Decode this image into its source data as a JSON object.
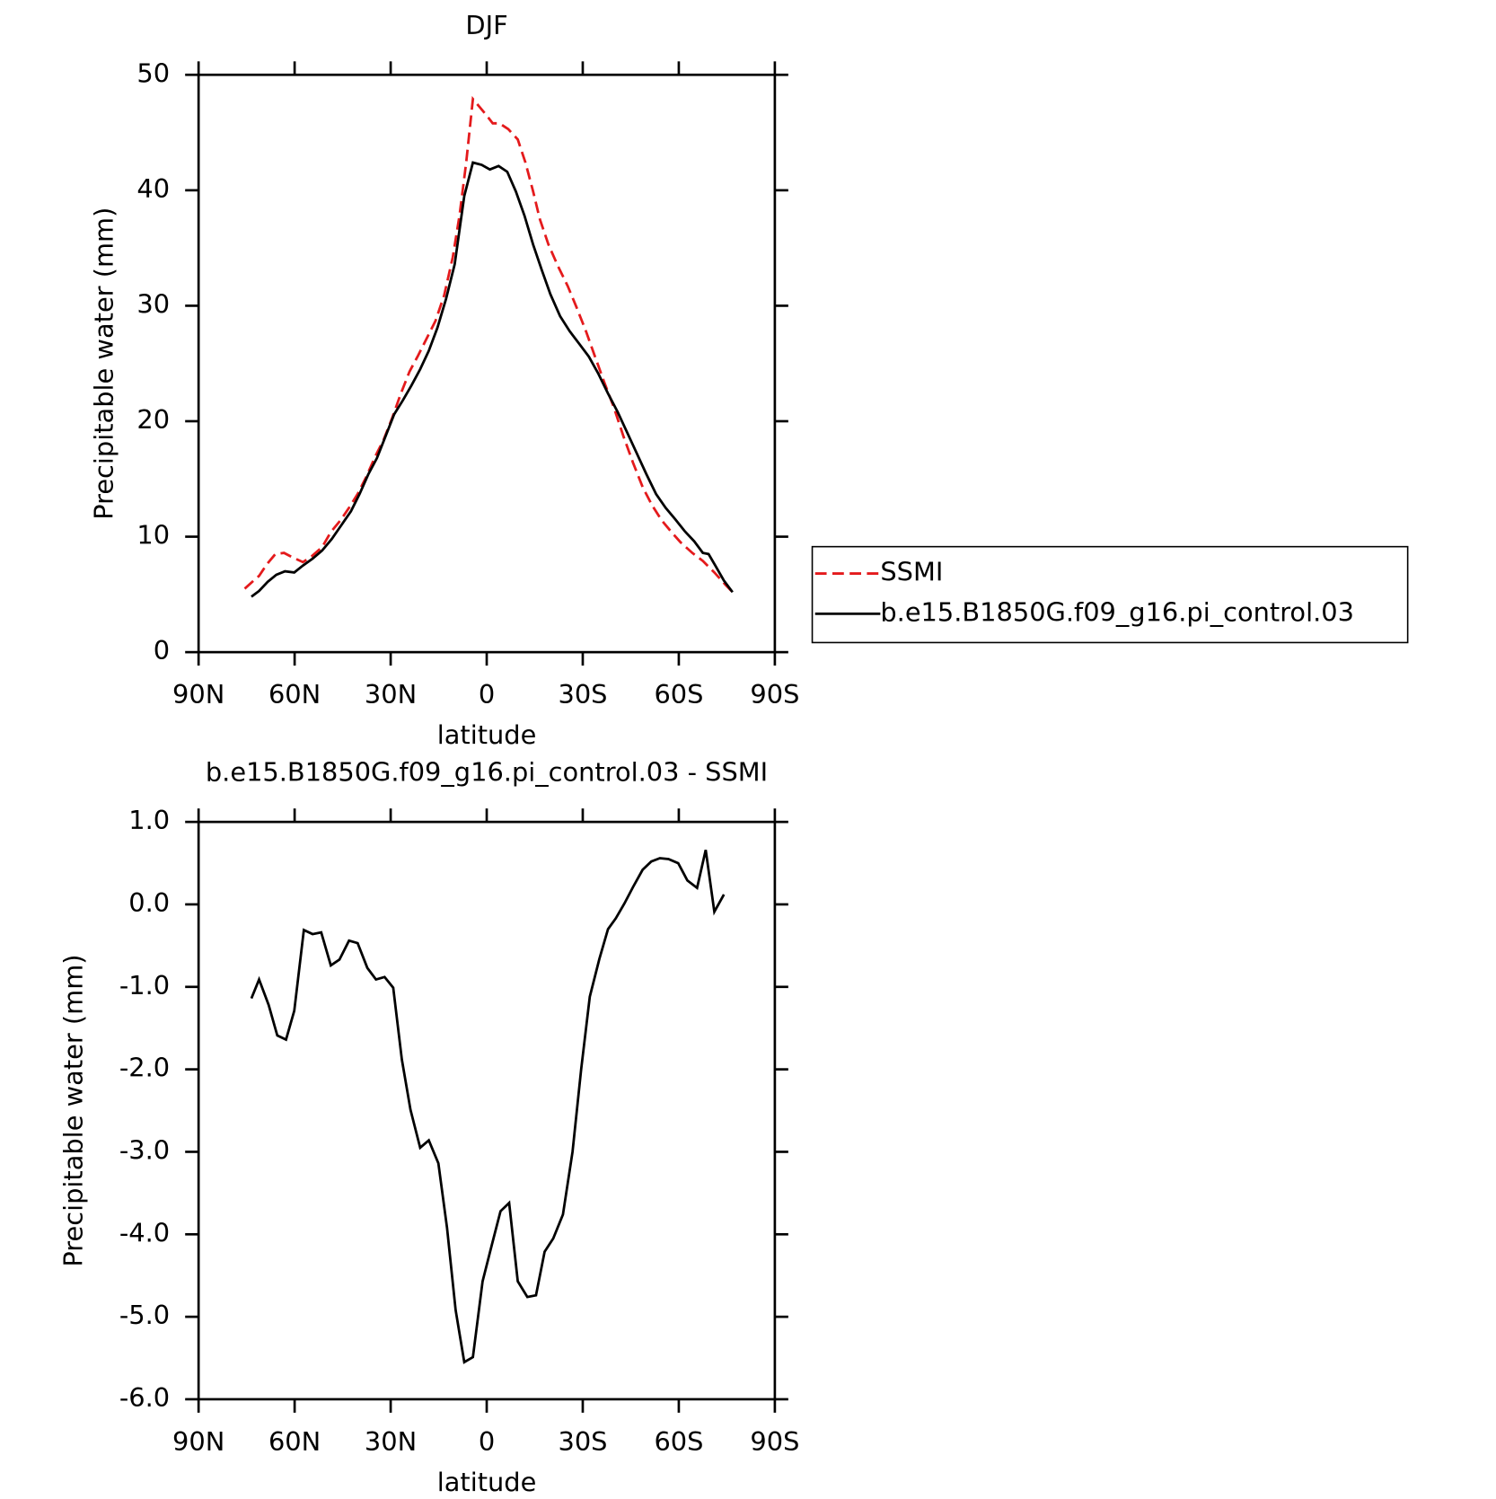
{
  "chart_data": [
    {
      "type": "line",
      "title": "DJF",
      "xlabel": "latitude",
      "ylabel": "Precipitable water (mm)",
      "xlim": [
        90,
        -90
      ],
      "ylim": [
        0,
        50
      ],
      "xticks": [
        {
          "value": 90,
          "label": "90N"
        },
        {
          "value": 60,
          "label": "60N"
        },
        {
          "value": 30,
          "label": "30N"
        },
        0,
        {
          "value": -30,
          "label": "30S"
        },
        {
          "value": -60,
          "label": "60S"
        },
        {
          "value": -90,
          "label": "90S"
        }
      ],
      "yticks": [
        0,
        10,
        20,
        30,
        40,
        50
      ],
      "legend": true,
      "series": [
        {
          "name": "SSMI",
          "color": "#e41a1c",
          "line_style": "dashed",
          "x": [
            75.6,
            73.2,
            71.1,
            68.7,
            66.0,
            63.3,
            60.6,
            57.4,
            54.7,
            51.4,
            48.7,
            45.7,
            43.0,
            40.3,
            37.6,
            34.9,
            32.2,
            29.5,
            26.8,
            24.1,
            21.4,
            18.7,
            16.0,
            13.3,
            10.6,
            8.5,
            6.4,
            4.3,
            2.2,
            0.1,
            -1.9,
            -4.0,
            -6.7,
            -9.7,
            -12.1,
            -14.5,
            -16.6,
            -19.3,
            -22.3,
            -25.3,
            -28.0,
            -31.0,
            -33.7,
            -36.7,
            -39.7,
            -42.7,
            -45.7,
            -48.7,
            -51.7,
            -54.7,
            -57.7,
            -60.6,
            -64.2,
            -67.5,
            -71.1,
            -74.7,
            -76.8
          ],
          "values": [
            5.5,
            6.1,
            6.6,
            7.6,
            8.5,
            8.6,
            8.2,
            7.8,
            8.3,
            9.1,
            10.4,
            11.4,
            12.5,
            13.7,
            15.2,
            16.9,
            18.4,
            20.3,
            22.4,
            24.3,
            25.7,
            27.2,
            28.7,
            30.9,
            34.2,
            37.8,
            42.4,
            47.9,
            47.2,
            46.5,
            45.8,
            45.8,
            45.3,
            44.4,
            42.4,
            39.9,
            37.5,
            35.3,
            33.4,
            31.7,
            29.9,
            27.8,
            25.7,
            23.4,
            21.2,
            18.7,
            16.4,
            14.3,
            12.7,
            11.4,
            10.4,
            9.5,
            8.6,
            7.9,
            6.9,
            5.8,
            5.2
          ]
        },
        {
          "name": "b.e15.B1850G.f09_g16.pi_control.03",
          "color": "#000000",
          "line_style": "solid",
          "x": [
            73.5,
            71.1,
            68.4,
            65.7,
            63.0,
            60.1,
            57.4,
            54.4,
            51.4,
            48.4,
            45.4,
            42.4,
            39.7,
            37.0,
            34.3,
            31.6,
            28.9,
            26.2,
            23.5,
            20.8,
            18.1,
            15.4,
            12.7,
            10.0,
            7.0,
            4.3,
            1.6,
            -1.0,
            -3.7,
            -6.4,
            -9.1,
            -11.8,
            -14.5,
            -17.2,
            -19.9,
            -22.9,
            -25.9,
            -28.9,
            -31.9,
            -34.9,
            -37.9,
            -40.9,
            -43.9,
            -46.9,
            -49.9,
            -52.9,
            -55.9,
            -58.9,
            -61.8,
            -64.8,
            -67.5,
            -69.3,
            -71.4,
            -74.1,
            -76.8
          ],
          "values": [
            4.8,
            5.3,
            6.1,
            6.7,
            7.0,
            6.9,
            7.5,
            8.1,
            8.8,
            9.8,
            11.0,
            12.2,
            13.7,
            15.4,
            16.8,
            18.7,
            20.6,
            21.8,
            23.1,
            24.5,
            26.1,
            28.1,
            30.6,
            33.6,
            39.5,
            42.4,
            42.2,
            41.8,
            42.1,
            41.6,
            39.9,
            37.8,
            35.3,
            33.1,
            31.0,
            29.1,
            27.8,
            26.7,
            25.6,
            24.1,
            22.4,
            20.8,
            19.0,
            17.2,
            15.4,
            13.7,
            12.5,
            11.5,
            10.5,
            9.6,
            8.6,
            8.5,
            7.5,
            6.2,
            5.2
          ]
        }
      ]
    },
    {
      "type": "line",
      "title": "b.e15.B1850G.f09_g16.pi_control.03 - SSMI",
      "xlabel": "latitude",
      "ylabel": "Precipitable water (mm)",
      "xlim": [
        90,
        -90
      ],
      "ylim": [
        -6,
        1
      ],
      "xticks": [
        {
          "value": 90,
          "label": "90N"
        },
        {
          "value": 60,
          "label": "60N"
        },
        {
          "value": 30,
          "label": "30N"
        },
        0,
        {
          "value": -30,
          "label": "30S"
        },
        {
          "value": -60,
          "label": "60S"
        },
        {
          "value": -90,
          "label": "90S"
        }
      ],
      "yticks": [
        {
          "value": 1,
          "label": "1.0"
        },
        {
          "value": 0,
          "label": "0.0"
        },
        {
          "value": -1,
          "label": "-1.0"
        },
        {
          "value": -2,
          "label": "-2.0"
        },
        {
          "value": -3,
          "label": "-3.0"
        },
        {
          "value": -4,
          "label": "-4.0"
        },
        {
          "value": -5,
          "label": "-5.0"
        },
        {
          "value": -6,
          "label": "-6.0"
        }
      ],
      "legend": false,
      "series": [
        {
          "color": "#000000",
          "line_style": "solid",
          "x": [
            73.5,
            71.1,
            68.1,
            65.4,
            62.7,
            60.1,
            57.1,
            54.4,
            51.7,
            48.7,
            46.0,
            43.0,
            40.3,
            37.3,
            34.6,
            31.9,
            29.2,
            26.5,
            23.8,
            20.8,
            18.1,
            15.1,
            12.4,
            9.7,
            7.0,
            4.3,
            1.3,
            -1.6,
            -4.3,
            -7.0,
            -9.7,
            -12.7,
            -15.4,
            -18.1,
            -20.8,
            -23.8,
            -26.8,
            -29.5,
            -32.2,
            -35.2,
            -37.9,
            -40.3,
            -43.0,
            -45.7,
            -48.7,
            -51.4,
            -54.1,
            -56.8,
            -59.8,
            -62.7,
            -65.7,
            -68.4,
            -71.1,
            -74.1
          ],
          "values": [
            -1.14,
            -0.91,
            -1.22,
            -1.59,
            -1.64,
            -1.29,
            -0.31,
            -0.36,
            -0.34,
            -0.74,
            -0.67,
            -0.44,
            -0.47,
            -0.77,
            -0.91,
            -0.88,
            -1.01,
            -1.88,
            -2.49,
            -2.95,
            -2.86,
            -3.14,
            -3.92,
            -4.92,
            -5.55,
            -5.49,
            -4.57,
            -4.13,
            -3.72,
            -3.62,
            -4.57,
            -4.76,
            -4.74,
            -4.21,
            -4.05,
            -3.76,
            -3.0,
            -2.0,
            -1.12,
            -0.66,
            -0.3,
            -0.17,
            0.01,
            0.21,
            0.42,
            0.52,
            0.56,
            0.55,
            0.5,
            0.29,
            0.2,
            0.66,
            -0.09,
            0.12
          ]
        }
      ]
    }
  ]
}
